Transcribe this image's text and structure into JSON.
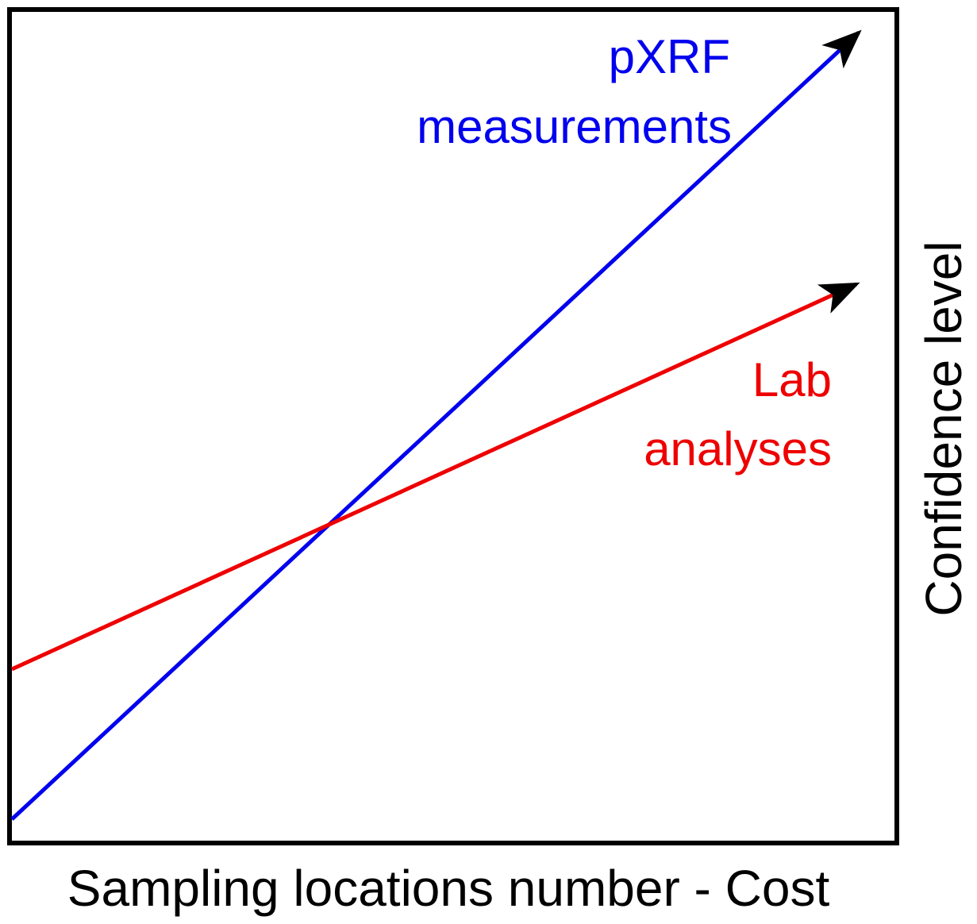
{
  "lines": [
    {
      "label_lines": [
        "pXRF",
        "measurements"
      ]
    },
    {
      "label_lines": [
        "Lab",
        "analyses"
      ]
    }
  ],
  "x_axis_label": "Sampling locations number - Cost",
  "y_axis_label": "Confidence level"
}
